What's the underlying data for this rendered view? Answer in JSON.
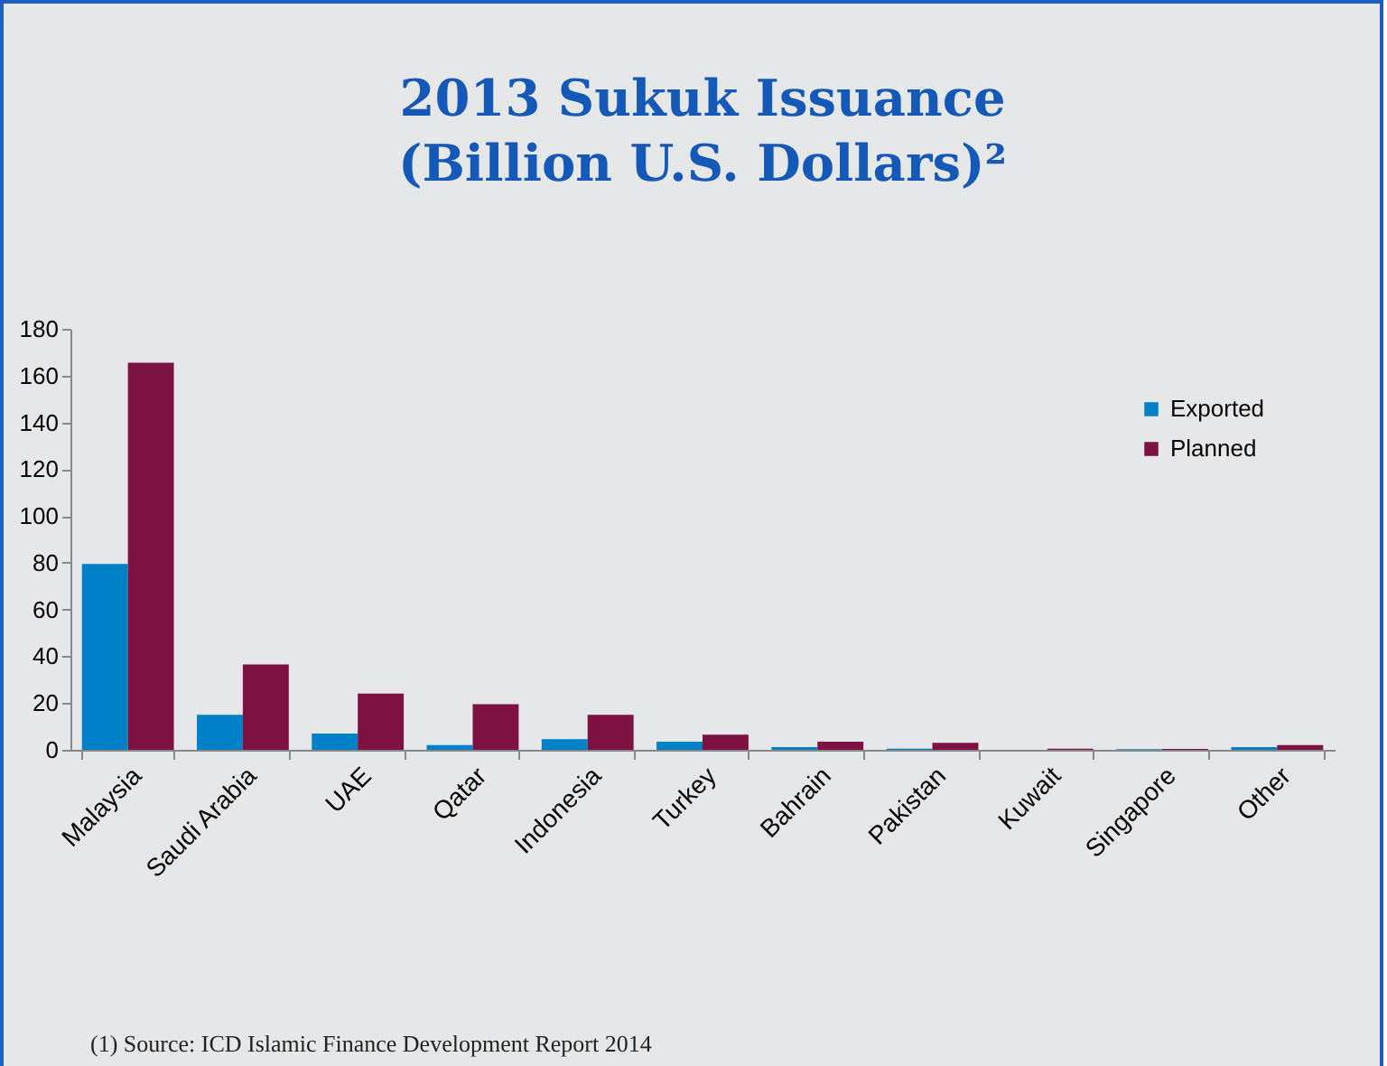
{
  "chart_data": {
    "type": "bar",
    "title": "2013 Sukuk Issuance\n(Billion U.S. Dollars)²",
    "categories": [
      "Malaysia",
      "Saudi Arabia",
      "UAE",
      "Qatar",
      "Indonesia",
      "Turkey",
      "Bahrain",
      "Pakistan",
      "Kuwait",
      "Singapore",
      "Other"
    ],
    "series": [
      {
        "name": "Exported",
        "color": "#0080c6",
        "values": [
          79.5,
          15,
          7,
          2,
          4.5,
          3.5,
          1.2,
          0.5,
          null,
          0.3,
          1.2
        ]
      },
      {
        "name": "Planned",
        "color": "#7d1242",
        "values": [
          165.5,
          36.5,
          24,
          19.5,
          15,
          6.5,
          3.5,
          3,
          0.5,
          0.4,
          2
        ]
      }
    ],
    "ylim": [
      0,
      180
    ],
    "yticks": [
      0,
      20,
      40,
      60,
      80,
      100,
      120,
      140,
      160,
      180
    ],
    "grid": false,
    "legend": "top right",
    "annotations": [
      "(1) Source: ICD Islamic Finance Development Report 2014"
    ]
  }
}
